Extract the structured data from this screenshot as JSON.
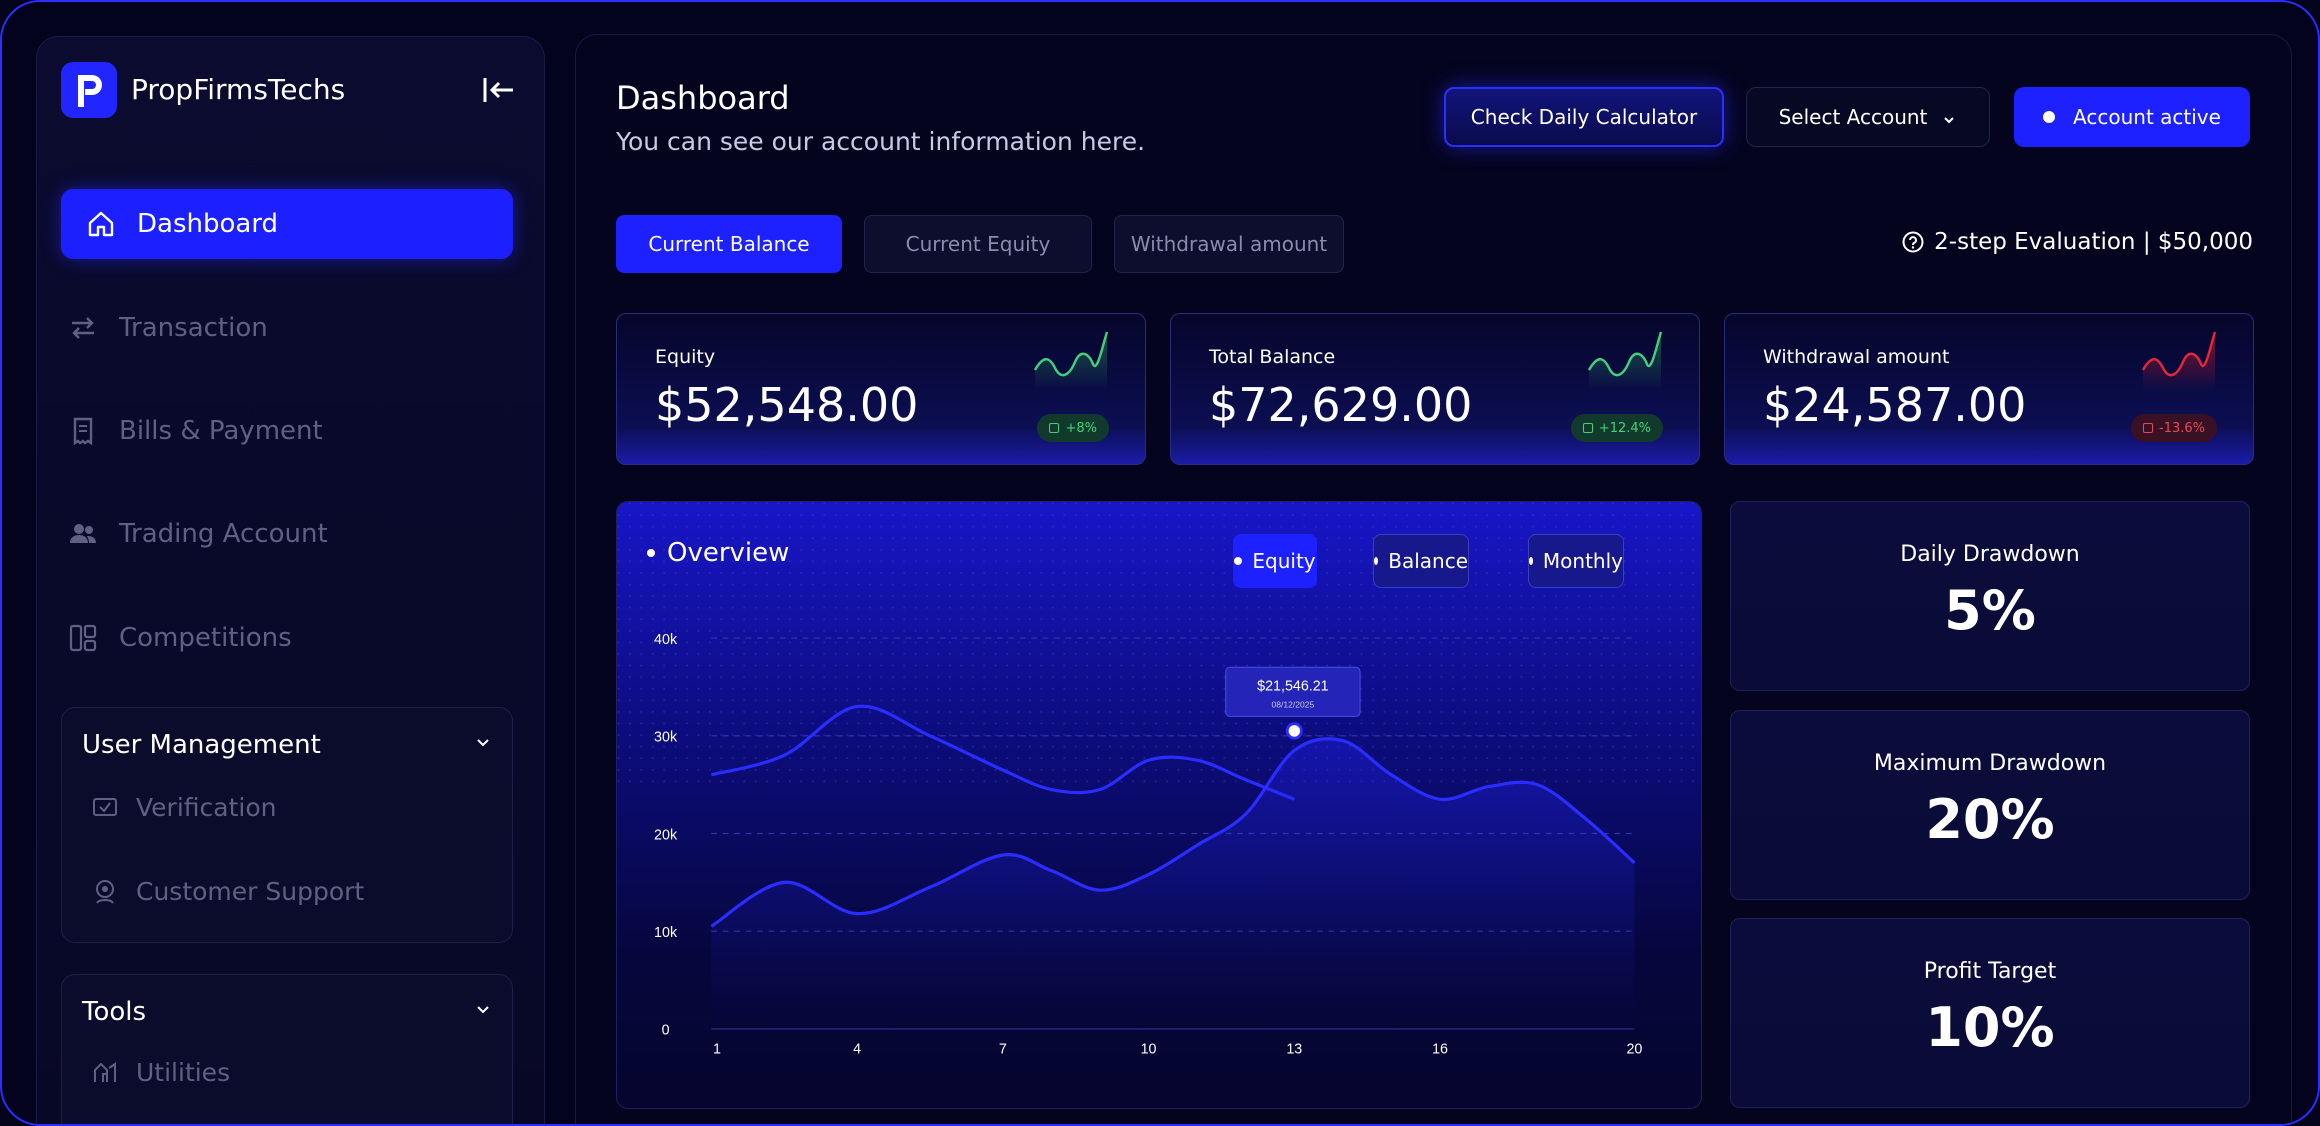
{
  "sidebar": {
    "brand": "PropFirmsTechs",
    "items": [
      {
        "label": "Dashboard",
        "active": true
      },
      {
        "label": "Transaction"
      },
      {
        "label": "Bills & Payment"
      },
      {
        "label": "Trading Account"
      },
      {
        "label": "Competitions"
      }
    ],
    "groups": [
      {
        "title": "User Management",
        "items": [
          {
            "label": "Verification"
          },
          {
            "label": "Customer Support"
          }
        ]
      },
      {
        "title": "Tools",
        "items": [
          {
            "label": "Utilities"
          }
        ]
      }
    ]
  },
  "header": {
    "title": "Dashboard",
    "subtitle": "You can see our account information here.",
    "calc_button": "Check Daily Calculator",
    "select_account": "Select Account",
    "account_status": "Account active"
  },
  "tabs": [
    {
      "label": "Current Balance",
      "active": true
    },
    {
      "label": "Current Equity"
    },
    {
      "label": "Withdrawal amount"
    }
  ],
  "evaluation": "2-step Evaluation | $50,000",
  "cards": [
    {
      "label": "Equity",
      "value": "$52,548.00",
      "change": "+8%",
      "trend": "up",
      "color": "#44d07a"
    },
    {
      "label": "Total Balance",
      "value": "$72,629.00",
      "change": "+12.4%",
      "trend": "up",
      "color": "#44d07a"
    },
    {
      "label": "Withdrawal amount",
      "value": "$24,587.00",
      "change": "-13.6%",
      "trend": "down",
      "color": "#e2283a"
    }
  ],
  "overview": {
    "title": "Overview",
    "filters": [
      {
        "label": "Equity",
        "active": true
      },
      {
        "label": "Balance"
      },
      {
        "label": "Monthly"
      }
    ],
    "tooltip": {
      "value": "$21,546.21",
      "date": "08/12/2025"
    }
  },
  "chart_data": {
    "type": "line",
    "x_ticks": [
      1,
      4,
      7,
      10,
      13,
      16,
      20
    ],
    "y_ticks": [
      "0",
      "10k",
      "20k",
      "30k",
      "40k"
    ],
    "ylim": [
      0,
      40000
    ],
    "xlim": [
      1,
      20
    ],
    "series": [
      {
        "x": [
          1,
          2.5,
          4,
          5.5,
          7,
          8,
          9,
          10,
          11,
          12,
          13
        ],
        "values": [
          26000,
          28000,
          33000,
          30000,
          26500,
          24500,
          24500,
          27500,
          27500,
          25500,
          23500
        ]
      },
      {
        "x": [
          1,
          2.5,
          4,
          5.5,
          7,
          8,
          9,
          10,
          11,
          12,
          13,
          14,
          15,
          16,
          17,
          18,
          19,
          20
        ],
        "values": [
          10500,
          15000,
          11800,
          14500,
          17800,
          16200,
          14200,
          15800,
          18800,
          22000,
          28500,
          29500,
          26000,
          23500,
          24800,
          25000,
          21500,
          17000
        ]
      }
    ],
    "highlight": {
      "x": 13,
      "y": 30500
    }
  },
  "metrics": [
    {
      "label": "Daily Drawdown",
      "value": "5%"
    },
    {
      "label": "Maximum Drawdown",
      "value": "20%"
    },
    {
      "label": "Profit Target",
      "value": "10%"
    }
  ]
}
